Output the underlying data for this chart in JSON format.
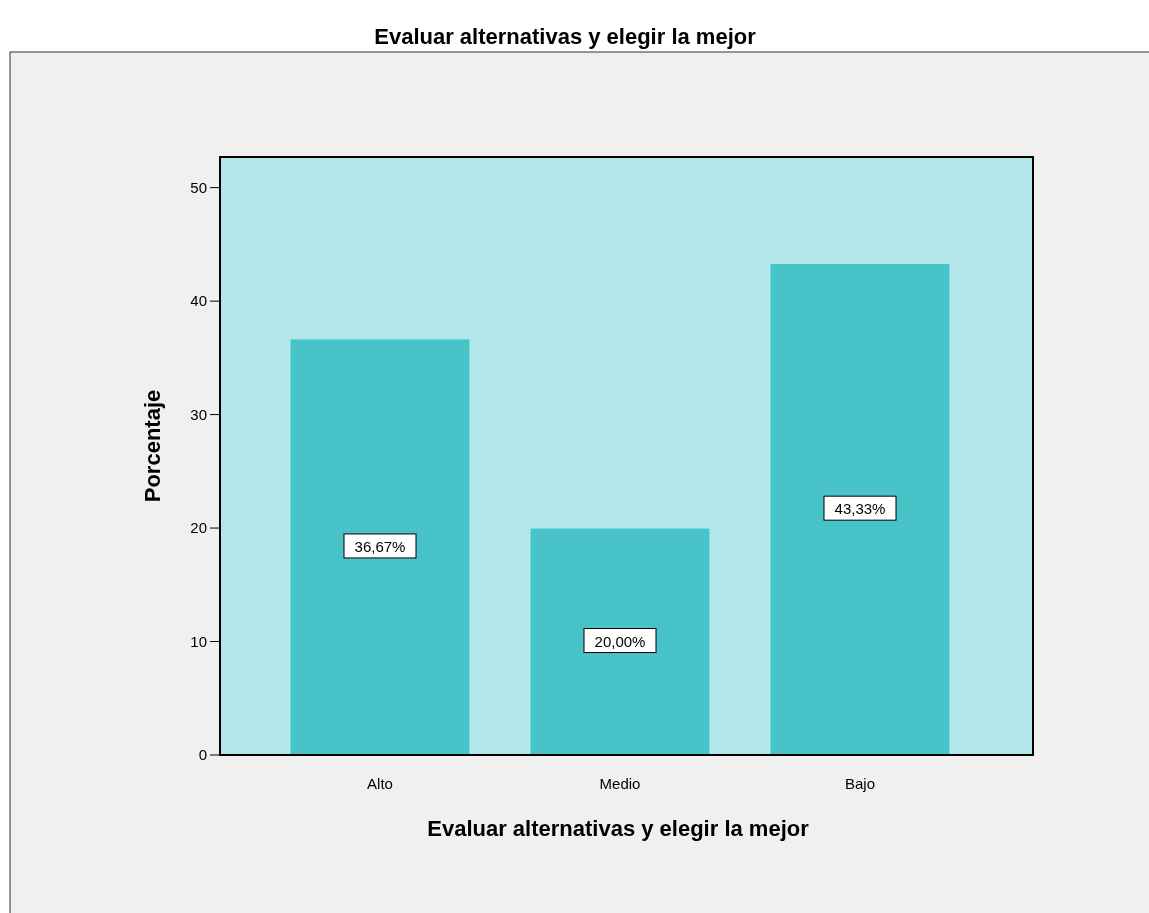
{
  "chart_data": {
    "type": "bar",
    "title": "Evaluar alternativas y elegir la mejor",
    "xlabel": "Evaluar alternativas y elegir la mejor",
    "ylabel": "Porcentaje",
    "categories": [
      "Alto",
      "Medio",
      "Bajo"
    ],
    "values": [
      36.67,
      20.0,
      43.33
    ],
    "value_labels": [
      "36,67%",
      "20,00%",
      "43,33%"
    ],
    "color": "#48c3c8",
    "ylim": [
      0,
      52.7
    ],
    "yticks": [
      0,
      10,
      20,
      30,
      40,
      50
    ]
  }
}
